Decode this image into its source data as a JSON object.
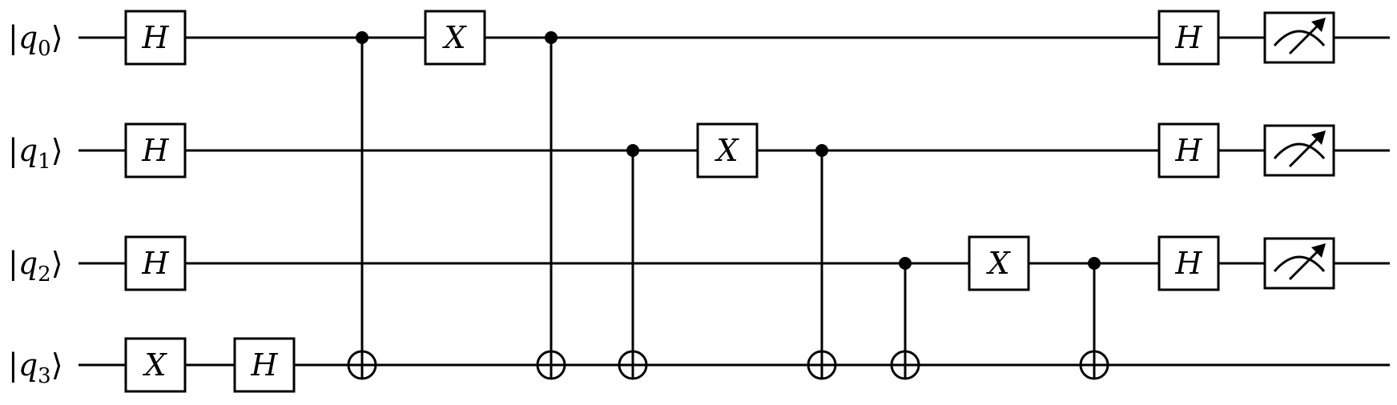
{
  "qubits": [
    {
      "label": "q",
      "index": "0"
    },
    {
      "label": "q",
      "index": "1"
    },
    {
      "label": "q",
      "index": "2"
    },
    {
      "label": "q",
      "index": "3"
    }
  ],
  "operations": [
    {
      "type": "gate",
      "name": "H",
      "qubit": 0,
      "column": 0
    },
    {
      "type": "gate",
      "name": "H",
      "qubit": 1,
      "column": 0
    },
    {
      "type": "gate",
      "name": "H",
      "qubit": 2,
      "column": 0
    },
    {
      "type": "gate",
      "name": "X",
      "qubit": 3,
      "column": 0
    },
    {
      "type": "gate",
      "name": "H",
      "qubit": 3,
      "column": 1
    },
    {
      "type": "cnot",
      "control": 0,
      "target": 3,
      "column": 2
    },
    {
      "type": "gate",
      "name": "X",
      "qubit": 0,
      "column": 3
    },
    {
      "type": "cnot",
      "control": 0,
      "target": 3,
      "column": 4
    },
    {
      "type": "cnot",
      "control": 1,
      "target": 3,
      "column": 5
    },
    {
      "type": "gate",
      "name": "X",
      "qubit": 1,
      "column": 6
    },
    {
      "type": "cnot",
      "control": 1,
      "target": 3,
      "column": 7
    },
    {
      "type": "cnot",
      "control": 2,
      "target": 3,
      "column": 8
    },
    {
      "type": "gate",
      "name": "X",
      "qubit": 2,
      "column": 9
    },
    {
      "type": "cnot",
      "control": 2,
      "target": 3,
      "column": 10
    },
    {
      "type": "gate",
      "name": "H",
      "qubit": 0,
      "column": 11
    },
    {
      "type": "gate",
      "name": "H",
      "qubit": 1,
      "column": 11
    },
    {
      "type": "gate",
      "name": "H",
      "qubit": 2,
      "column": 11
    },
    {
      "type": "measure",
      "qubit": 0,
      "column": 12
    },
    {
      "type": "measure",
      "qubit": 1,
      "column": 12
    },
    {
      "type": "measure",
      "qubit": 2,
      "column": 12
    }
  ]
}
